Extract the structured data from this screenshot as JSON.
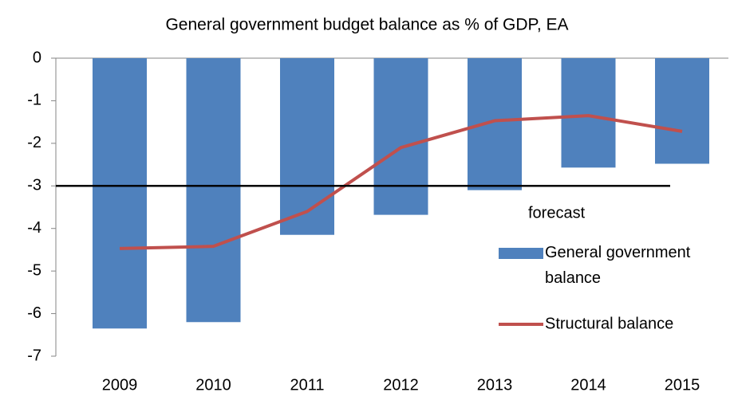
{
  "chart_data": {
    "type": "bar",
    "title": "General government budget balance as % of GDP, EA",
    "categories": [
      "2009",
      "2010",
      "2011",
      "2012",
      "2013",
      "2014",
      "2015"
    ],
    "series": [
      {
        "name": "General government balance",
        "type": "bar",
        "color": "#4f81bd",
        "values": [
          -6.35,
          -6.2,
          -4.15,
          -3.68,
          -3.1,
          -2.57,
          -2.48
        ]
      },
      {
        "name": "Structural balance",
        "type": "line",
        "color": "#c0504d",
        "values": [
          -4.47,
          -4.42,
          -3.6,
          -2.1,
          -1.47,
          -1.35,
          -1.72
        ]
      }
    ],
    "reference_line": {
      "value": -3,
      "color": "#000000"
    },
    "annotation": "forecast",
    "ylim": [
      -7,
      0
    ],
    "yticks": [
      0,
      -1,
      -2,
      -3,
      -4,
      -5,
      -6,
      -7
    ],
    "grid": false,
    "legend": "right"
  }
}
